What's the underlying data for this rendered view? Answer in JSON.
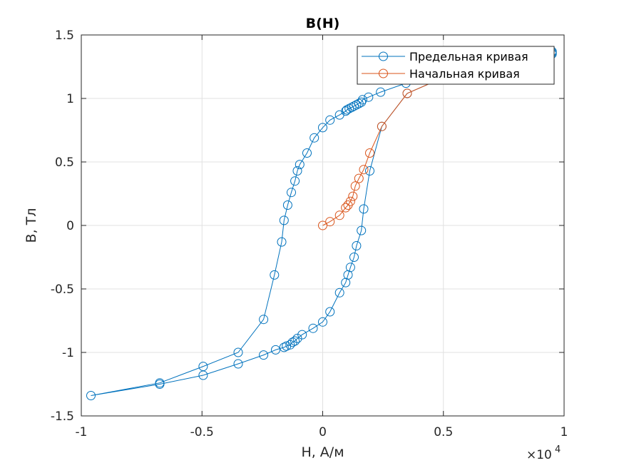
{
  "chart_data": {
    "type": "line",
    "title": "B(H)",
    "xlabel": "H, А/м",
    "ylabel": "B, Тл",
    "x_exponent_label": "×10",
    "x_exponent_power": "4",
    "xlim": [
      -10000,
      10000
    ],
    "ylim": [
      -1.5,
      1.5
    ],
    "x_ticks": [
      -10000,
      -5000,
      0,
      5000,
      10000
    ],
    "x_tick_labels": [
      "-1",
      "-0.5",
      "0",
      "0.5",
      "1"
    ],
    "y_ticks": [
      -1.5,
      -1,
      -0.5,
      0,
      0.5,
      1,
      1.5
    ],
    "y_tick_labels": [
      "-1.5",
      "-1",
      "-0.5",
      "0",
      "0.5",
      "1",
      "1.5"
    ],
    "grid": true,
    "legend_position": "top-right",
    "series": [
      {
        "name": "Предельная кривая",
        "color": "#0072BD",
        "marker": "circle",
        "x": [
          9500,
          9500,
          3450,
          2400,
          1900,
          1650,
          1600,
          1500,
          1400,
          1300,
          1200,
          1100,
          1000,
          950,
          700,
          300,
          0,
          -350,
          -650,
          -950,
          -1050,
          -1150,
          -1300,
          -1450,
          -1600,
          -1700,
          -2000,
          -2450,
          -3500,
          -4950,
          -6750,
          -9600,
          -6750,
          -4950,
          -3500,
          -2450,
          -1950,
          -1600,
          -1500,
          -1350,
          -1250,
          -1150,
          -1050,
          -850,
          -400,
          0,
          300,
          700,
          950,
          1050,
          1150,
          1300,
          1400,
          1600,
          1700,
          1950,
          2450,
          3500,
          4950,
          6750,
          9500
        ],
        "y": [
          1.37,
          1.35,
          1.12,
          1.05,
          1.01,
          0.99,
          0.97,
          0.96,
          0.95,
          0.94,
          0.93,
          0.92,
          0.91,
          0.9,
          0.87,
          0.83,
          0.77,
          0.69,
          0.57,
          0.48,
          0.43,
          0.35,
          0.26,
          0.16,
          0.04,
          -0.13,
          -0.39,
          -0.74,
          -1.0,
          -1.11,
          -1.24,
          -1.34,
          -1.25,
          -1.18,
          -1.09,
          -1.02,
          -0.98,
          -0.96,
          -0.95,
          -0.94,
          -0.92,
          -0.91,
          -0.89,
          -0.86,
          -0.81,
          -0.76,
          -0.68,
          -0.53,
          -0.45,
          -0.39,
          -0.33,
          -0.25,
          -0.16,
          -0.04,
          0.13,
          0.43,
          0.78,
          1.04,
          1.16,
          1.25,
          1.36
        ]
      },
      {
        "name": "Начальная кривая",
        "color": "#D95319",
        "marker": "circle",
        "x": [
          0,
          300,
          700,
          950,
          1050,
          1150,
          1250,
          1350,
          1500,
          1700,
          1950,
          2450,
          3500,
          4950
        ],
        "y": [
          0.0,
          0.03,
          0.08,
          0.14,
          0.16,
          0.19,
          0.23,
          0.31,
          0.37,
          0.44,
          0.57,
          0.78,
          1.04,
          1.16
        ]
      }
    ]
  }
}
